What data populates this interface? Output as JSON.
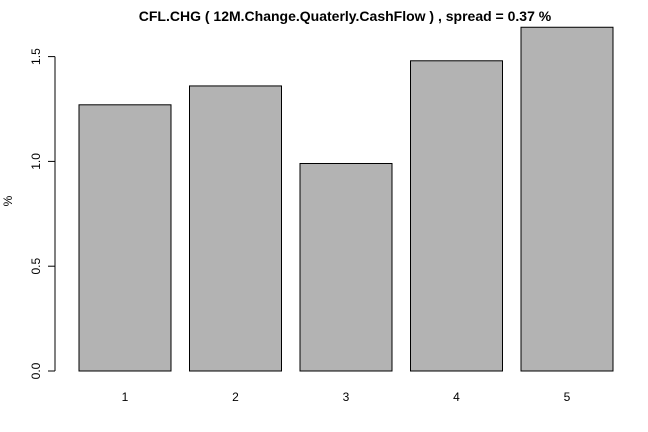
{
  "chart_data": {
    "type": "bar",
    "title": "CFL.CHG ( 12M.Change.Quaterly.CashFlow ) , spread = 0.37 %",
    "xlabel": "",
    "ylabel": "%",
    "categories": [
      "1",
      "2",
      "3",
      "4",
      "5"
    ],
    "values": [
      1.27,
      1.36,
      0.99,
      1.48,
      1.64
    ],
    "ylim": [
      0,
      1.64
    ],
    "yticks": [
      0,
      0.5,
      1,
      1.5
    ],
    "ytick_labels": [
      "0.0",
      "0.5",
      "1.0",
      "1.5"
    ],
    "grid": false,
    "legend": "none",
    "bar_color": "#b3b3b3",
    "bar_border_color": "#000000"
  }
}
